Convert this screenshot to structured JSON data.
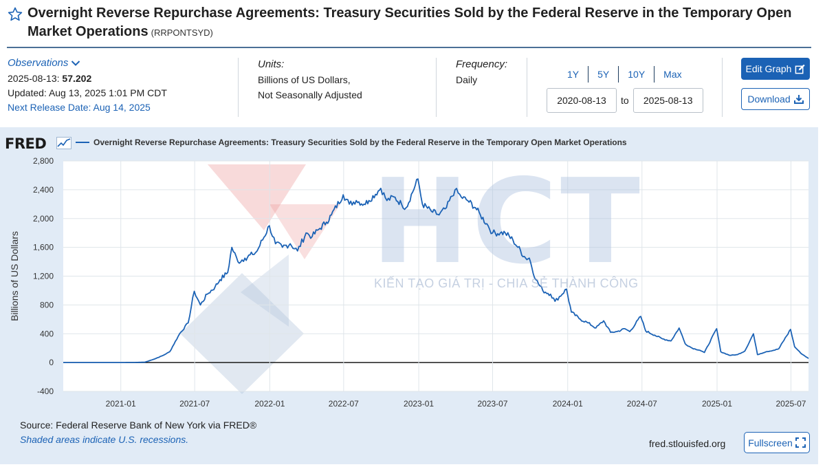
{
  "header": {
    "title": "Overnight Reverse Repurchase Agreements: Treasury Securities Sold by the Federal Reserve in the Temporary Open Market Operations",
    "series_id": "(RRPONTSYD)"
  },
  "observations": {
    "label": "Observations",
    "date": "2025-08-13:",
    "value": "57.202",
    "updated": "Updated: Aug 13, 2025 1:01 PM CDT",
    "next_release": "Next Release Date: Aug 14, 2025"
  },
  "units": {
    "label": "Units:",
    "line1": "Billions of US Dollars,",
    "line2": "Not Seasonally Adjusted"
  },
  "frequency": {
    "label": "Frequency:",
    "value": "Daily"
  },
  "ranges": [
    "1Y",
    "5Y",
    "10Y",
    "Max"
  ],
  "date_range": {
    "start": "2020-08-13",
    "to": "to",
    "end": "2025-08-13"
  },
  "buttons": {
    "edit": "Edit Graph",
    "download": "Download",
    "fullscreen": "Fullscreen"
  },
  "graph": {
    "logo": "FRED",
    "legend": "Overnight Reverse Repurchase Agreements: Treasury Securities Sold by the Federal Reserve in the Temporary Open Market Operations",
    "source": "Source: Federal Reserve Bank of New York via FRED®",
    "recession_note": "Shaded areas indicate U.S. recessions.",
    "site": "fred.stlouisfed.org"
  },
  "watermark": {
    "letters": "HCT",
    "tagline": "KIẾN TẠO GIÁ TRỊ - CHIA SẺ THÀNH CÔNG"
  },
  "colors": {
    "line": "#1b62b5",
    "accent": "#1b62b5",
    "plot_bg": "#ffffff",
    "frame_bg": "#e1ebf6"
  },
  "chart_data": {
    "type": "line",
    "ylabel": "Billions of US Dollars",
    "ylim": [
      -400,
      2800
    ],
    "yticks": [
      2800,
      2400,
      2000,
      1600,
      1200,
      800,
      400,
      0,
      -400
    ],
    "ytick_labels": [
      "2,800",
      "2,400",
      "2,000",
      "1,600",
      "1,200",
      "800",
      "400",
      "0",
      "-400"
    ],
    "xlim": [
      "2020-08-13",
      "2025-08-13"
    ],
    "xticks": [
      "2021-01",
      "2021-07",
      "2022-01",
      "2022-07",
      "2023-01",
      "2023-07",
      "2024-01",
      "2024-07",
      "2025-01",
      "2025-07"
    ],
    "grid": true,
    "legend_position": "top",
    "series": [
      {
        "name": "Overnight Reverse Repurchase Agreements: Treasury Securities Sold by the Federal Reserve in the Temporary Open Market Operations",
        "points": [
          [
            "2020-08-13",
            0
          ],
          [
            "2020-10-01",
            0
          ],
          [
            "2020-12-01",
            0
          ],
          [
            "2021-02-01",
            1
          ],
          [
            "2021-03-01",
            5
          ],
          [
            "2021-03-25",
            50
          ],
          [
            "2021-04-15",
            100
          ],
          [
            "2021-05-01",
            150
          ],
          [
            "2021-05-25",
            400
          ],
          [
            "2021-06-15",
            550
          ],
          [
            "2021-06-30",
            990
          ],
          [
            "2021-07-15",
            800
          ],
          [
            "2021-08-01",
            950
          ],
          [
            "2021-08-20",
            1050
          ],
          [
            "2021-09-01",
            1150
          ],
          [
            "2021-09-20",
            1250
          ],
          [
            "2021-09-30",
            1600
          ],
          [
            "2021-10-15",
            1400
          ],
          [
            "2021-11-01",
            1450
          ],
          [
            "2021-11-20",
            1500
          ],
          [
            "2021-12-01",
            1550
          ],
          [
            "2021-12-31",
            1900
          ],
          [
            "2022-01-15",
            1650
          ],
          [
            "2022-02-01",
            1600
          ],
          [
            "2022-02-20",
            1650
          ],
          [
            "2022-03-10",
            1550
          ],
          [
            "2022-03-31",
            1800
          ],
          [
            "2022-04-15",
            1750
          ],
          [
            "2022-05-01",
            1850
          ],
          [
            "2022-05-20",
            1950
          ],
          [
            "2022-06-01",
            2050
          ],
          [
            "2022-06-30",
            2330
          ],
          [
            "2022-07-15",
            2200
          ],
          [
            "2022-08-01",
            2250
          ],
          [
            "2022-08-20",
            2200
          ],
          [
            "2022-09-01",
            2250
          ],
          [
            "2022-09-30",
            2420
          ],
          [
            "2022-10-15",
            2250
          ],
          [
            "2022-11-01",
            2300
          ],
          [
            "2022-11-20",
            2200
          ],
          [
            "2022-12-01",
            2150
          ],
          [
            "2022-12-30",
            2550
          ],
          [
            "2023-01-10",
            2200
          ],
          [
            "2023-02-01",
            2100
          ],
          [
            "2023-02-20",
            2050
          ],
          [
            "2023-03-10",
            2150
          ],
          [
            "2023-03-31",
            2400
          ],
          [
            "2023-04-15",
            2300
          ],
          [
            "2023-05-01",
            2250
          ],
          [
            "2023-05-20",
            2150
          ],
          [
            "2023-06-01",
            2050
          ],
          [
            "2023-06-20",
            1900
          ],
          [
            "2023-07-01",
            1800
          ],
          [
            "2023-07-20",
            1800
          ],
          [
            "2023-08-01",
            1800
          ],
          [
            "2023-08-20",
            1700
          ],
          [
            "2023-09-01",
            1600
          ],
          [
            "2023-09-20",
            1450
          ],
          [
            "2023-09-29",
            1450
          ],
          [
            "2023-10-15",
            1150
          ],
          [
            "2023-11-01",
            1000
          ],
          [
            "2023-11-20",
            950
          ],
          [
            "2023-12-01",
            850
          ],
          [
            "2023-12-29",
            1020
          ],
          [
            "2024-01-10",
            700
          ],
          [
            "2024-02-01",
            600
          ],
          [
            "2024-02-20",
            550
          ],
          [
            "2024-03-10",
            480
          ],
          [
            "2024-03-29",
            580
          ],
          [
            "2024-04-15",
            420
          ],
          [
            "2024-05-01",
            430
          ],
          [
            "2024-05-20",
            470
          ],
          [
            "2024-06-01",
            430
          ],
          [
            "2024-06-28",
            640
          ],
          [
            "2024-07-10",
            440
          ],
          [
            "2024-08-01",
            380
          ],
          [
            "2024-08-20",
            330
          ],
          [
            "2024-09-10",
            300
          ],
          [
            "2024-09-30",
            480
          ],
          [
            "2024-10-15",
            260
          ],
          [
            "2024-11-01",
            200
          ],
          [
            "2024-11-20",
            170
          ],
          [
            "2024-12-01",
            140
          ],
          [
            "2024-12-31",
            470
          ],
          [
            "2025-01-10",
            150
          ],
          [
            "2025-02-01",
            100
          ],
          [
            "2025-02-20",
            110
          ],
          [
            "2025-03-10",
            160
          ],
          [
            "2025-03-31",
            400
          ],
          [
            "2025-04-10",
            110
          ],
          [
            "2025-05-01",
            150
          ],
          [
            "2025-05-20",
            170
          ],
          [
            "2025-06-01",
            190
          ],
          [
            "2025-06-30",
            460
          ],
          [
            "2025-07-10",
            220
          ],
          [
            "2025-07-25",
            130
          ],
          [
            "2025-08-13",
            57
          ]
        ]
      }
    ]
  }
}
